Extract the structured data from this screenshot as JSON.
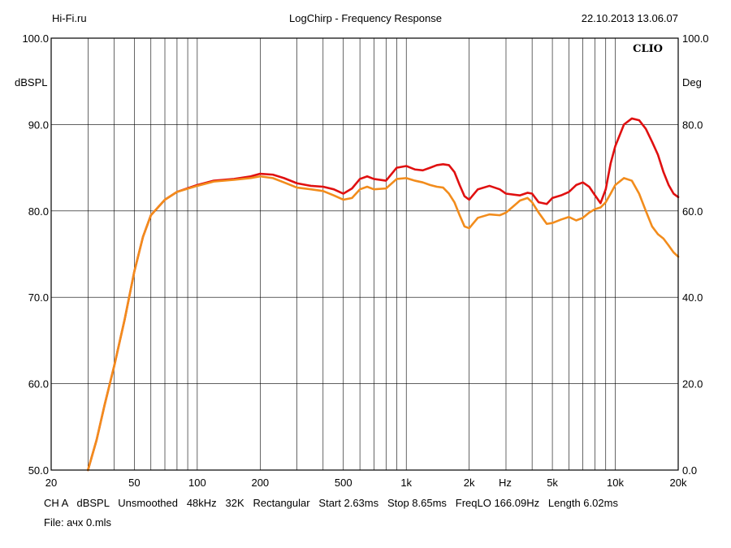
{
  "header": {
    "left": "Hi-Fi.ru",
    "title": "LogChirp - Frequency Response",
    "datetime": "22.10.2013 13.06.07"
  },
  "brand": "CLIO",
  "footer": {
    "settings": "CH A   dBSPL   Unsmoothed   48kHz   32K   Rectangular   Start 2.63ms   Stop 8.65ms   FreqLO 166.09Hz   Length 6.02ms",
    "file": "File: ачх 0.mls"
  },
  "colors": {
    "series_red": "#e01010",
    "series_orange": "#f28c1c",
    "grid": "#000000"
  },
  "chart_data": {
    "type": "line",
    "title": "LogChirp - Frequency Response",
    "x_scale": "log",
    "xlim": [
      20,
      20000
    ],
    "ylim": [
      50,
      100
    ],
    "ylim_right": [
      0,
      100
    ],
    "ylabel": "dBSPL",
    "ylabel_right": "Deg",
    "x_unit_label": "Hz",
    "grid": true,
    "x_tick_labels": [
      {
        "x": 20,
        "label": "20"
      },
      {
        "x": 50,
        "label": "50"
      },
      {
        "x": 100,
        "label": "100"
      },
      {
        "x": 200,
        "label": "200"
      },
      {
        "x": 500,
        "label": "500"
      },
      {
        "x": 1000,
        "label": "1k"
      },
      {
        "x": 2000,
        "label": "2k"
      },
      {
        "x": 5000,
        "label": "5k"
      },
      {
        "x": 10000,
        "label": "10k"
      },
      {
        "x": 20000,
        "label": "20k"
      }
    ],
    "y_ticks": [
      {
        "y": 100,
        "label": "100.0"
      },
      {
        "y": 90,
        "label": "90.0"
      },
      {
        "y": 80,
        "label": "80.0"
      },
      {
        "y": 70,
        "label": "70.0"
      },
      {
        "y": 60,
        "label": "60.0"
      },
      {
        "y": 50,
        "label": "50.0"
      }
    ],
    "y_ticks_right": [
      {
        "y": 100,
        "label": "100.0"
      },
      {
        "y": 80,
        "label": "80.0"
      },
      {
        "y": 60,
        "label": "60.0"
      },
      {
        "y": 40,
        "label": "40.0"
      },
      {
        "y": 20,
        "label": "20.0"
      },
      {
        "y": 0,
        "label": "0.0"
      }
    ],
    "series": [
      {
        "color": "#e01010",
        "x": [
          30,
          33,
          36,
          40,
          45,
          50,
          55,
          60,
          70,
          80,
          100,
          120,
          150,
          180,
          200,
          230,
          260,
          300,
          350,
          400,
          450,
          500,
          550,
          600,
          650,
          700,
          800,
          900,
          1000,
          1100,
          1200,
          1300,
          1400,
          1500,
          1600,
          1700,
          1800,
          1900,
          2000,
          2200,
          2500,
          2800,
          3000,
          3500,
          3800,
          4000,
          4300,
          4700,
          5000,
          5500,
          6000,
          6500,
          7000,
          7500,
          8000,
          8500,
          9000,
          9500,
          10000,
          11000,
          12000,
          13000,
          14000,
          15000,
          16000,
          17000,
          18000,
          19000,
          20000
        ],
        "y": [
          50.0,
          53.5,
          57.5,
          62.0,
          67.5,
          73.0,
          77.0,
          79.5,
          81.3,
          82.2,
          83.0,
          83.5,
          83.7,
          84.0,
          84.3,
          84.2,
          83.8,
          83.2,
          82.9,
          82.8,
          82.5,
          82.0,
          82.6,
          83.7,
          84.0,
          83.7,
          83.5,
          85.0,
          85.2,
          84.8,
          84.7,
          85.0,
          85.3,
          85.4,
          85.3,
          84.5,
          83.0,
          81.7,
          81.3,
          82.5,
          82.9,
          82.5,
          82.0,
          81.8,
          82.1,
          82.0,
          81.0,
          80.8,
          81.5,
          81.8,
          82.2,
          83.0,
          83.3,
          82.8,
          81.8,
          80.9,
          82.5,
          85.5,
          87.5,
          90.0,
          90.7,
          90.5,
          89.5,
          88.0,
          86.5,
          84.5,
          83.0,
          82.0,
          81.6
        ]
      },
      {
        "color": "#f28c1c",
        "x": [
          30,
          33,
          36,
          40,
          45,
          50,
          55,
          60,
          70,
          80,
          100,
          120,
          150,
          180,
          200,
          230,
          260,
          300,
          350,
          400,
          450,
          500,
          550,
          600,
          650,
          700,
          800,
          900,
          1000,
          1100,
          1200,
          1300,
          1400,
          1500,
          1600,
          1700,
          1800,
          1900,
          2000,
          2200,
          2500,
          2800,
          3000,
          3500,
          3800,
          4000,
          4300,
          4700,
          5000,
          5500,
          6000,
          6500,
          7000,
          7500,
          8000,
          8500,
          9000,
          9500,
          10000,
          11000,
          12000,
          13000,
          14000,
          15000,
          16000,
          17000,
          18000,
          19000,
          20000
        ],
        "y": [
          50.0,
          53.5,
          57.5,
          62.0,
          67.5,
          73.0,
          77.0,
          79.5,
          81.3,
          82.2,
          82.9,
          83.4,
          83.6,
          83.8,
          84.0,
          83.8,
          83.3,
          82.7,
          82.5,
          82.3,
          81.8,
          81.3,
          81.5,
          82.5,
          82.8,
          82.5,
          82.6,
          83.7,
          83.8,
          83.5,
          83.3,
          83.0,
          82.8,
          82.7,
          82.0,
          81.0,
          79.5,
          78.2,
          78.0,
          79.2,
          79.6,
          79.5,
          79.8,
          81.2,
          81.5,
          81.0,
          79.8,
          78.5,
          78.6,
          79.0,
          79.3,
          78.9,
          79.2,
          79.8,
          80.2,
          80.4,
          81.0,
          82.0,
          83.0,
          83.8,
          83.5,
          82.0,
          80.0,
          78.2,
          77.3,
          76.8,
          76.0,
          75.2,
          74.7
        ]
      }
    ]
  }
}
